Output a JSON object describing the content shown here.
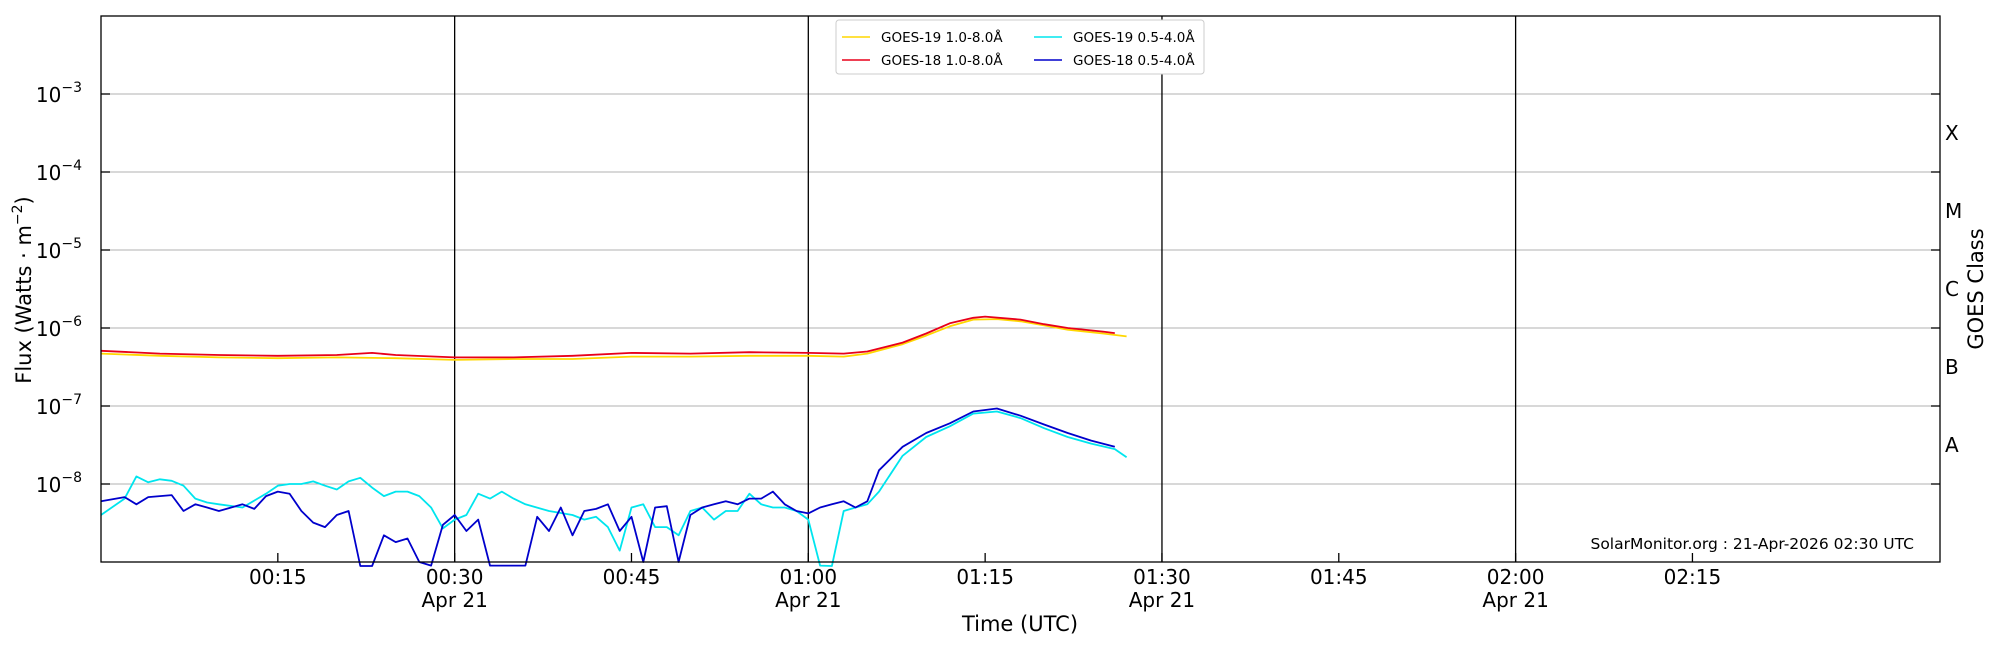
{
  "chart_data": {
    "type": "line",
    "xlabel": "Time (UTC)",
    "ylabel": "Flux (Watts · m",
    "ylabel_sup": "−2",
    "ylabel_close": ")",
    "right_label": "GOES Class",
    "y_scale": "log",
    "ylim": [
      1e-09,
      0.01
    ],
    "xlim": [
      "00:00",
      "02:36"
    ],
    "grid": "horizontal at decades",
    "date_label": "Apr 21",
    "x_ticks": [
      {
        "t": "00:15",
        "label": "00:15",
        "date": false
      },
      {
        "t": "00:30",
        "label": "00:30",
        "date": true
      },
      {
        "t": "00:45",
        "label": "00:45",
        "date": false
      },
      {
        "t": "01:00",
        "label": "01:00",
        "date": true
      },
      {
        "t": "01:15",
        "label": "01:15",
        "date": false
      },
      {
        "t": "01:30",
        "label": "01:30",
        "date": true
      },
      {
        "t": "01:45",
        "label": "01:45",
        "date": false
      },
      {
        "t": "02:00",
        "label": "02:00",
        "date": true
      },
      {
        "t": "02:15",
        "label": "02:15",
        "date": false
      }
    ],
    "day_lines": [
      "00:30",
      "01:00",
      "01:30",
      "02:00"
    ],
    "y_ticks": [
      {
        "v": 1e-08,
        "base": "10",
        "exp": "−8"
      },
      {
        "v": 1e-07,
        "base": "10",
        "exp": "−7"
      },
      {
        "v": 1e-06,
        "base": "10",
        "exp": "−6"
      },
      {
        "v": 1e-05,
        "base": "10",
        "exp": "−5"
      },
      {
        "v": 0.0001,
        "base": "10",
        "exp": "−4"
      },
      {
        "v": 0.001,
        "base": "10",
        "exp": "−3"
      }
    ],
    "goes_classes": [
      {
        "label": "A",
        "v": 3.16e-08
      },
      {
        "label": "B",
        "v": 3.16e-07
      },
      {
        "label": "C",
        "v": 3.16e-06
      },
      {
        "label": "M",
        "v": 3.16e-05
      },
      {
        "label": "X",
        "v": 0.000316
      }
    ],
    "legend_position": "top-center",
    "series": [
      {
        "name": "GOES-19 1.0-8.0Å",
        "color": "#ffd700",
        "x": [
          "00:00",
          "00:05",
          "00:10",
          "00:15",
          "00:20",
          "00:25",
          "00:30",
          "00:35",
          "00:40",
          "00:45",
          "00:50",
          "00:55",
          "01:00",
          "01:03",
          "01:05",
          "01:08",
          "01:10",
          "01:12",
          "01:14",
          "01:16",
          "01:18",
          "01:20",
          "01:22",
          "01:25",
          "01:27"
        ],
        "values": [
          4.7e-07,
          4.4e-07,
          4.2e-07,
          4.1e-07,
          4.2e-07,
          4.1e-07,
          3.9e-07,
          4e-07,
          4e-07,
          4.3e-07,
          4.3e-07,
          4.4e-07,
          4.4e-07,
          4.3e-07,
          4.7e-07,
          6.2e-07,
          8e-07,
          1.05e-06,
          1.28e-06,
          1.3e-06,
          1.22e-06,
          1.08e-06,
          9.5e-07,
          8.5e-07,
          7.8e-07
        ]
      },
      {
        "name": "GOES-18 1.0-8.0Å",
        "color": "#e8001a",
        "x": [
          "00:00",
          "00:05",
          "00:10",
          "00:15",
          "00:20",
          "00:23",
          "00:25",
          "00:30",
          "00:35",
          "00:40",
          "00:45",
          "00:50",
          "00:55",
          "01:00",
          "01:03",
          "01:05",
          "01:08",
          "01:10",
          "01:12",
          "01:14",
          "01:15",
          "01:18",
          "01:20",
          "01:22",
          "01:25",
          "01:26"
        ],
        "values": [
          5.1e-07,
          4.7e-07,
          4.5e-07,
          4.4e-07,
          4.5e-07,
          4.8e-07,
          4.5e-07,
          4.2e-07,
          4.2e-07,
          4.4e-07,
          4.8e-07,
          4.7e-07,
          4.9e-07,
          4.8e-07,
          4.7e-07,
          5e-07,
          6.5e-07,
          8.5e-07,
          1.15e-06,
          1.35e-06,
          1.4e-06,
          1.28e-06,
          1.12e-06,
          1e-06,
          9e-07,
          8.6e-07
        ]
      },
      {
        "name": "GOES-19 0.5-4.0Å",
        "color": "#00e5ee",
        "x": [
          "00:00",
          "00:02",
          "00:03",
          "00:04",
          "00:05",
          "00:06",
          "00:07",
          "00:08",
          "00:09",
          "00:10",
          "00:12",
          "00:14",
          "00:15",
          "00:16",
          "00:17",
          "00:18",
          "00:19",
          "00:20",
          "00:21",
          "00:22",
          "00:23",
          "00:24",
          "00:25",
          "00:26",
          "00:27",
          "00:28",
          "00:29",
          "00:30",
          "00:31",
          "00:32",
          "00:33",
          "00:34",
          "00:35",
          "00:36",
          "00:38",
          "00:40",
          "00:41",
          "00:42",
          "00:43",
          "00:44",
          "00:45",
          "00:46",
          "00:47",
          "00:48",
          "00:49",
          "00:50",
          "00:51",
          "00:52",
          "00:53",
          "00:54",
          "00:55",
          "00:56",
          "00:57",
          "00:58",
          "00:59",
          "01:00",
          "01:01",
          "01:02",
          "01:03",
          "01:04",
          "01:05",
          "01:06",
          "01:08",
          "01:10",
          "01:12",
          "01:14",
          "01:16",
          "01:18",
          "01:20",
          "01:22",
          "01:24",
          "01:26",
          "01:27"
        ],
        "values": [
          4e-09,
          6.5e-09,
          1.25e-08,
          1.05e-08,
          1.15e-08,
          1.1e-08,
          9.5e-09,
          6.5e-09,
          5.8e-09,
          5.5e-09,
          5e-09,
          7.5e-09,
          9.5e-09,
          1e-08,
          1e-08,
          1.08e-08,
          9.5e-09,
          8.5e-09,
          1.08e-08,
          1.2e-08,
          9e-09,
          7e-09,
          8e-09,
          8e-09,
          7e-09,
          5e-09,
          2.7e-09,
          3.5e-09,
          4e-09,
          7.5e-09,
          6.5e-09,
          8e-09,
          6.5e-09,
          5.5e-09,
          4.5e-09,
          4e-09,
          3.5e-09,
          3.8e-09,
          2.8e-09,
          1.4e-09,
          5e-09,
          5.5e-09,
          2.8e-09,
          2.8e-09,
          2.2e-09,
          4.5e-09,
          5e-09,
          3.5e-09,
          4.5e-09,
          4.5e-09,
          7.5e-09,
          5.5e-09,
          5e-09,
          5e-09,
          4.5e-09,
          3.5e-09,
          9e-10,
          8e-10,
          4.5e-09,
          5e-09,
          5.5e-09,
          8e-09,
          2.3e-08,
          4e-08,
          5.5e-08,
          8e-08,
          8.5e-08,
          7e-08,
          5.2e-08,
          4e-08,
          3.3e-08,
          2.8e-08,
          2.2e-08
        ]
      },
      {
        "name": "GOES-18 0.5-4.0Å",
        "color": "#0000cc",
        "x": [
          "00:00",
          "00:02",
          "00:03",
          "00:04",
          "00:05",
          "00:06",
          "00:07",
          "00:08",
          "00:09",
          "00:10",
          "00:12",
          "00:13",
          "00:14",
          "00:15",
          "00:16",
          "00:17",
          "00:18",
          "00:19",
          "00:20",
          "00:21",
          "00:22",
          "00:23",
          "00:24",
          "00:25",
          "00:26",
          "00:27",
          "00:28",
          "00:29",
          "00:30",
          "00:31",
          "00:32",
          "00:33",
          "00:34",
          "00:35",
          "00:36",
          "00:37",
          "00:38",
          "00:39",
          "00:40",
          "00:41",
          "00:42",
          "00:43",
          "00:44",
          "00:45",
          "00:46",
          "00:47",
          "00:48",
          "00:49",
          "00:50",
          "00:51",
          "00:52",
          "00:53",
          "00:54",
          "00:55",
          "00:56",
          "00:57",
          "00:58",
          "00:59",
          "01:00",
          "01:01",
          "01:02",
          "01:03",
          "01:04",
          "01:05",
          "01:06",
          "01:08",
          "01:10",
          "01:12",
          "01:14",
          "01:16",
          "01:18",
          "01:20",
          "01:22",
          "01:24",
          "01:26"
        ],
        "values": [
          6e-09,
          6.8e-09,
          5.5e-09,
          6.8e-09,
          7e-09,
          7.2e-09,
          4.5e-09,
          5.5e-09,
          5e-09,
          4.5e-09,
          5.5e-09,
          4.8e-09,
          7e-09,
          8e-09,
          7.5e-09,
          4.5e-09,
          3.2e-09,
          2.8e-09,
          4e-09,
          4.5e-09,
          8e-10,
          8e-10,
          2.2e-09,
          1.8e-09,
          2e-09,
          1e-09,
          9e-10,
          3e-09,
          4e-09,
          2.5e-09,
          3.5e-09,
          9e-10,
          9e-10,
          9e-10,
          9e-10,
          3.8e-09,
          2.5e-09,
          5e-09,
          2.2e-09,
          4.5e-09,
          4.8e-09,
          5.5e-09,
          2.5e-09,
          3.8e-09,
          1e-09,
          5e-09,
          5.2e-09,
          1e-09,
          4e-09,
          5e-09,
          5.5e-09,
          6e-09,
          5.5e-09,
          6.5e-09,
          6.5e-09,
          8e-09,
          5.5e-09,
          4.5e-09,
          4.2e-09,
          5e-09,
          5.5e-09,
          6e-09,
          5e-09,
          6e-09,
          1.5e-08,
          3e-08,
          4.5e-08,
          6e-08,
          8.5e-08,
          9.3e-08,
          7.5e-08,
          5.8e-08,
          4.5e-08,
          3.6e-08,
          3e-08
        ]
      }
    ],
    "credit": "SolarMonitor.org : 21-Apr-2026 02:30 UTC"
  }
}
